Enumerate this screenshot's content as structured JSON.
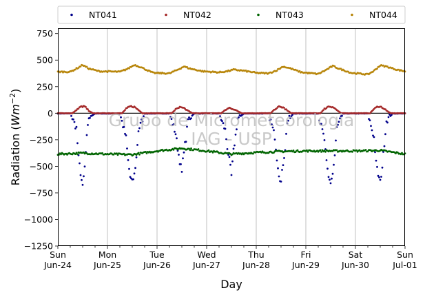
{
  "chart_data": {
    "type": "scatter",
    "xlabel": "Day",
    "ylabel": "Radiation",
    "ylabel_unit": "Wm",
    "ylabel_exp": "−2",
    "ylim": [
      -1250,
      800
    ],
    "yticks": [
      -1250,
      -1000,
      -750,
      -500,
      -250,
      0,
      250,
      500,
      750
    ],
    "ytick_labels": [
      "−1250",
      "−1000",
      "−750",
      "−500",
      "−250",
      "0",
      "250",
      "500",
      "750"
    ],
    "xlim": [
      "2018-06-24",
      "2018-07-01"
    ],
    "xticks": [
      {
        "day": "Sun",
        "date": "Jun-24"
      },
      {
        "day": "Mon",
        "date": "Jun-25"
      },
      {
        "day": "Tue",
        "date": "Jun-26"
      },
      {
        "day": "Wed",
        "date": "Jun-27"
      },
      {
        "day": "Thu",
        "date": "Jun-28"
      },
      {
        "day": "Fri",
        "date": "Jun-29"
      },
      {
        "day": "Sat",
        "date": "Jun-30"
      },
      {
        "day": "Sun",
        "date": "Jul-01"
      }
    ],
    "grid": "vertical",
    "legend_position": "top",
    "watermark": [
      "Grupo de Micrometeorologia",
      "IAG - USP"
    ],
    "series": [
      {
        "name": "NT041",
        "color": "#00008b",
        "points": [
          [
            "2018-06-24 00:00",
            -2
          ],
          [
            "2018-06-24 06:00",
            -2
          ],
          [
            "2018-06-24 09:00",
            -140
          ],
          [
            "2018-06-24 10:00",
            -420
          ],
          [
            "2018-06-24 11:00",
            -560
          ],
          [
            "2018-06-24 12:00",
            -700
          ],
          [
            "2018-06-24 13:00",
            -510
          ],
          [
            "2018-06-24 14:00",
            -230
          ],
          [
            "2018-06-24 15:00",
            -40
          ],
          [
            "2018-06-24 18:00",
            -3
          ],
          [
            "2018-06-25 06:00",
            -2
          ],
          [
            "2018-06-25 09:00",
            -230
          ],
          [
            "2018-06-25 10:00",
            -450
          ],
          [
            "2018-06-25 11:00",
            -600
          ],
          [
            "2018-06-25 12:00",
            -650
          ],
          [
            "2018-06-25 13:00",
            -580
          ],
          [
            "2018-06-25 14:00",
            -420
          ],
          [
            "2018-06-25 15:00",
            -160
          ],
          [
            "2018-06-25 18:00",
            -3
          ],
          [
            "2018-06-26 06:00",
            -2
          ],
          [
            "2018-06-26 09:00",
            -190
          ],
          [
            "2018-06-26 10:00",
            -330
          ],
          [
            "2018-06-26 11:00",
            -450
          ],
          [
            "2018-06-26 12:00",
            -560
          ],
          [
            "2018-06-26 13:00",
            -340
          ],
          [
            "2018-06-26 14:00",
            -250
          ],
          [
            "2018-06-26 15:00",
            -60
          ],
          [
            "2018-06-26 18:00",
            -3
          ],
          [
            "2018-06-27 06:00",
            -2
          ],
          [
            "2018-06-27 09:00",
            -160
          ],
          [
            "2018-06-27 10:00",
            -320
          ],
          [
            "2018-06-27 11:00",
            -440
          ],
          [
            "2018-06-27 12:00",
            -590
          ],
          [
            "2018-06-27 13:00",
            -360
          ],
          [
            "2018-06-27 14:00",
            -210
          ],
          [
            "2018-06-27 15:00",
            -50
          ],
          [
            "2018-06-27 18:00",
            -3
          ],
          [
            "2018-06-28 06:00",
            -2
          ],
          [
            "2018-06-28 09:00",
            -220
          ],
          [
            "2018-06-28 10:00",
            -420
          ],
          [
            "2018-06-28 11:00",
            -570
          ],
          [
            "2018-06-28 12:00",
            -650
          ],
          [
            "2018-06-28 13:00",
            -470
          ],
          [
            "2018-06-28 14:00",
            -330
          ],
          [
            "2018-06-28 15:00",
            -80
          ],
          [
            "2018-06-28 18:00",
            -3
          ],
          [
            "2018-06-29 06:00",
            -2
          ],
          [
            "2018-06-29 09:00",
            -250
          ],
          [
            "2018-06-29 10:00",
            -470
          ],
          [
            "2018-06-29 11:00",
            -610
          ],
          [
            "2018-06-29 12:00",
            -650
          ],
          [
            "2018-06-29 13:00",
            -570
          ],
          [
            "2018-06-29 14:00",
            -400
          ],
          [
            "2018-06-29 15:00",
            -140
          ],
          [
            "2018-06-29 18:00",
            -3
          ],
          [
            "2018-06-30 06:00",
            -2
          ],
          [
            "2018-06-30 09:00",
            -230
          ],
          [
            "2018-06-30 10:00",
            -470
          ],
          [
            "2018-06-30 11:00",
            -580
          ],
          [
            "2018-06-30 12:00",
            -650
          ],
          [
            "2018-06-30 13:00",
            -500
          ],
          [
            "2018-06-30 14:00",
            -280
          ],
          [
            "2018-06-30 15:00",
            -70
          ],
          [
            "2018-06-30 18:00",
            -3
          ],
          [
            "2018-07-01 00:00",
            -2
          ]
        ]
      },
      {
        "name": "NT042",
        "color": "#a52a2a",
        "points": [
          [
            "2018-06-24 00:00",
            0
          ],
          [
            "2018-06-24 07:00",
            0
          ],
          [
            "2018-06-24 09:00",
            30
          ],
          [
            "2018-06-24 11:00",
            60
          ],
          [
            "2018-06-24 13:00",
            65
          ],
          [
            "2018-06-24 15:00",
            20
          ],
          [
            "2018-06-24 17:00",
            0
          ],
          [
            "2018-06-25 07:00",
            0
          ],
          [
            "2018-06-25 09:00",
            40
          ],
          [
            "2018-06-25 11:00",
            65
          ],
          [
            "2018-06-25 13:00",
            60
          ],
          [
            "2018-06-25 15:00",
            30
          ],
          [
            "2018-06-25 17:00",
            0
          ],
          [
            "2018-06-26 07:00",
            0
          ],
          [
            "2018-06-26 09:00",
            35
          ],
          [
            "2018-06-26 11:00",
            55
          ],
          [
            "2018-06-26 13:00",
            45
          ],
          [
            "2018-06-26 15:00",
            25
          ],
          [
            "2018-06-26 17:00",
            0
          ],
          [
            "2018-06-27 07:00",
            0
          ],
          [
            "2018-06-27 09:00",
            30
          ],
          [
            "2018-06-27 11:00",
            50
          ],
          [
            "2018-06-27 13:00",
            40
          ],
          [
            "2018-06-27 15:00",
            20
          ],
          [
            "2018-06-27 17:00",
            0
          ],
          [
            "2018-06-28 07:00",
            0
          ],
          [
            "2018-06-28 09:00",
            40
          ],
          [
            "2018-06-28 11:00",
            60
          ],
          [
            "2018-06-28 13:00",
            55
          ],
          [
            "2018-06-28 15:00",
            25
          ],
          [
            "2018-06-28 17:00",
            0
          ],
          [
            "2018-06-29 07:00",
            0
          ],
          [
            "2018-06-29 09:00",
            40
          ],
          [
            "2018-06-29 11:00",
            65
          ],
          [
            "2018-06-29 13:00",
            60
          ],
          [
            "2018-06-29 15:00",
            30
          ],
          [
            "2018-06-29 17:00",
            0
          ],
          [
            "2018-06-30 07:00",
            0
          ],
          [
            "2018-06-30 09:00",
            40
          ],
          [
            "2018-06-30 11:00",
            65
          ],
          [
            "2018-06-30 13:00",
            55
          ],
          [
            "2018-06-30 15:00",
            25
          ],
          [
            "2018-06-30 17:00",
            0
          ],
          [
            "2018-07-01 00:00",
            0
          ]
        ]
      },
      {
        "name": "NT043",
        "color": "#006400",
        "points": [
          [
            "2018-06-24 00:00",
            -385
          ],
          [
            "2018-06-24 12:00",
            -375
          ],
          [
            "2018-06-25 00:00",
            -385
          ],
          [
            "2018-06-25 12:00",
            -390
          ],
          [
            "2018-06-26 00:00",
            -355
          ],
          [
            "2018-06-26 12:00",
            -330
          ],
          [
            "2018-06-27 00:00",
            -355
          ],
          [
            "2018-06-27 12:00",
            -385
          ],
          [
            "2018-06-28 00:00",
            -370
          ],
          [
            "2018-06-28 12:00",
            -360
          ],
          [
            "2018-06-29 00:00",
            -355
          ],
          [
            "2018-06-29 12:00",
            -355
          ],
          [
            "2018-06-30 00:00",
            -355
          ],
          [
            "2018-06-30 12:00",
            -350
          ],
          [
            "2018-07-01 00:00",
            -385
          ]
        ]
      },
      {
        "name": "NT044",
        "color": "#b8860b",
        "points": [
          [
            "2018-06-24 00:00",
            390
          ],
          [
            "2018-06-24 06:00",
            390
          ],
          [
            "2018-06-24 10:00",
            430
          ],
          [
            "2018-06-24 12:00",
            455
          ],
          [
            "2018-06-24 15:00",
            420
          ],
          [
            "2018-06-24 20:00",
            395
          ],
          [
            "2018-06-25 06:00",
            390
          ],
          [
            "2018-06-25 10:00",
            420
          ],
          [
            "2018-06-25 13:00",
            455
          ],
          [
            "2018-06-25 16:00",
            435
          ],
          [
            "2018-06-25 22:00",
            380
          ],
          [
            "2018-06-26 06:00",
            375
          ],
          [
            "2018-06-26 10:00",
            410
          ],
          [
            "2018-06-26 13:00",
            440
          ],
          [
            "2018-06-26 16:00",
            420
          ],
          [
            "2018-06-26 22:00",
            395
          ],
          [
            "2018-06-27 06:00",
            385
          ],
          [
            "2018-06-27 10:00",
            395
          ],
          [
            "2018-06-27 13:00",
            410
          ],
          [
            "2018-06-27 18:00",
            400
          ],
          [
            "2018-06-28 00:00",
            380
          ],
          [
            "2018-06-28 06:00",
            375
          ],
          [
            "2018-06-28 10:00",
            405
          ],
          [
            "2018-06-28 13:00",
            440
          ],
          [
            "2018-06-28 16:00",
            425
          ],
          [
            "2018-06-28 22:00",
            385
          ],
          [
            "2018-06-29 06:00",
            370
          ],
          [
            "2018-06-29 10:00",
            410
          ],
          [
            "2018-06-29 13:00",
            445
          ],
          [
            "2018-06-29 16:00",
            420
          ],
          [
            "2018-06-29 22:00",
            380
          ],
          [
            "2018-06-30 06:00",
            365
          ],
          [
            "2018-06-30 09:00",
            400
          ],
          [
            "2018-06-30 12:00",
            450
          ],
          [
            "2018-06-30 15:00",
            440
          ],
          [
            "2018-06-30 20:00",
            410
          ],
          [
            "2018-07-01 00:00",
            395
          ]
        ]
      }
    ]
  }
}
